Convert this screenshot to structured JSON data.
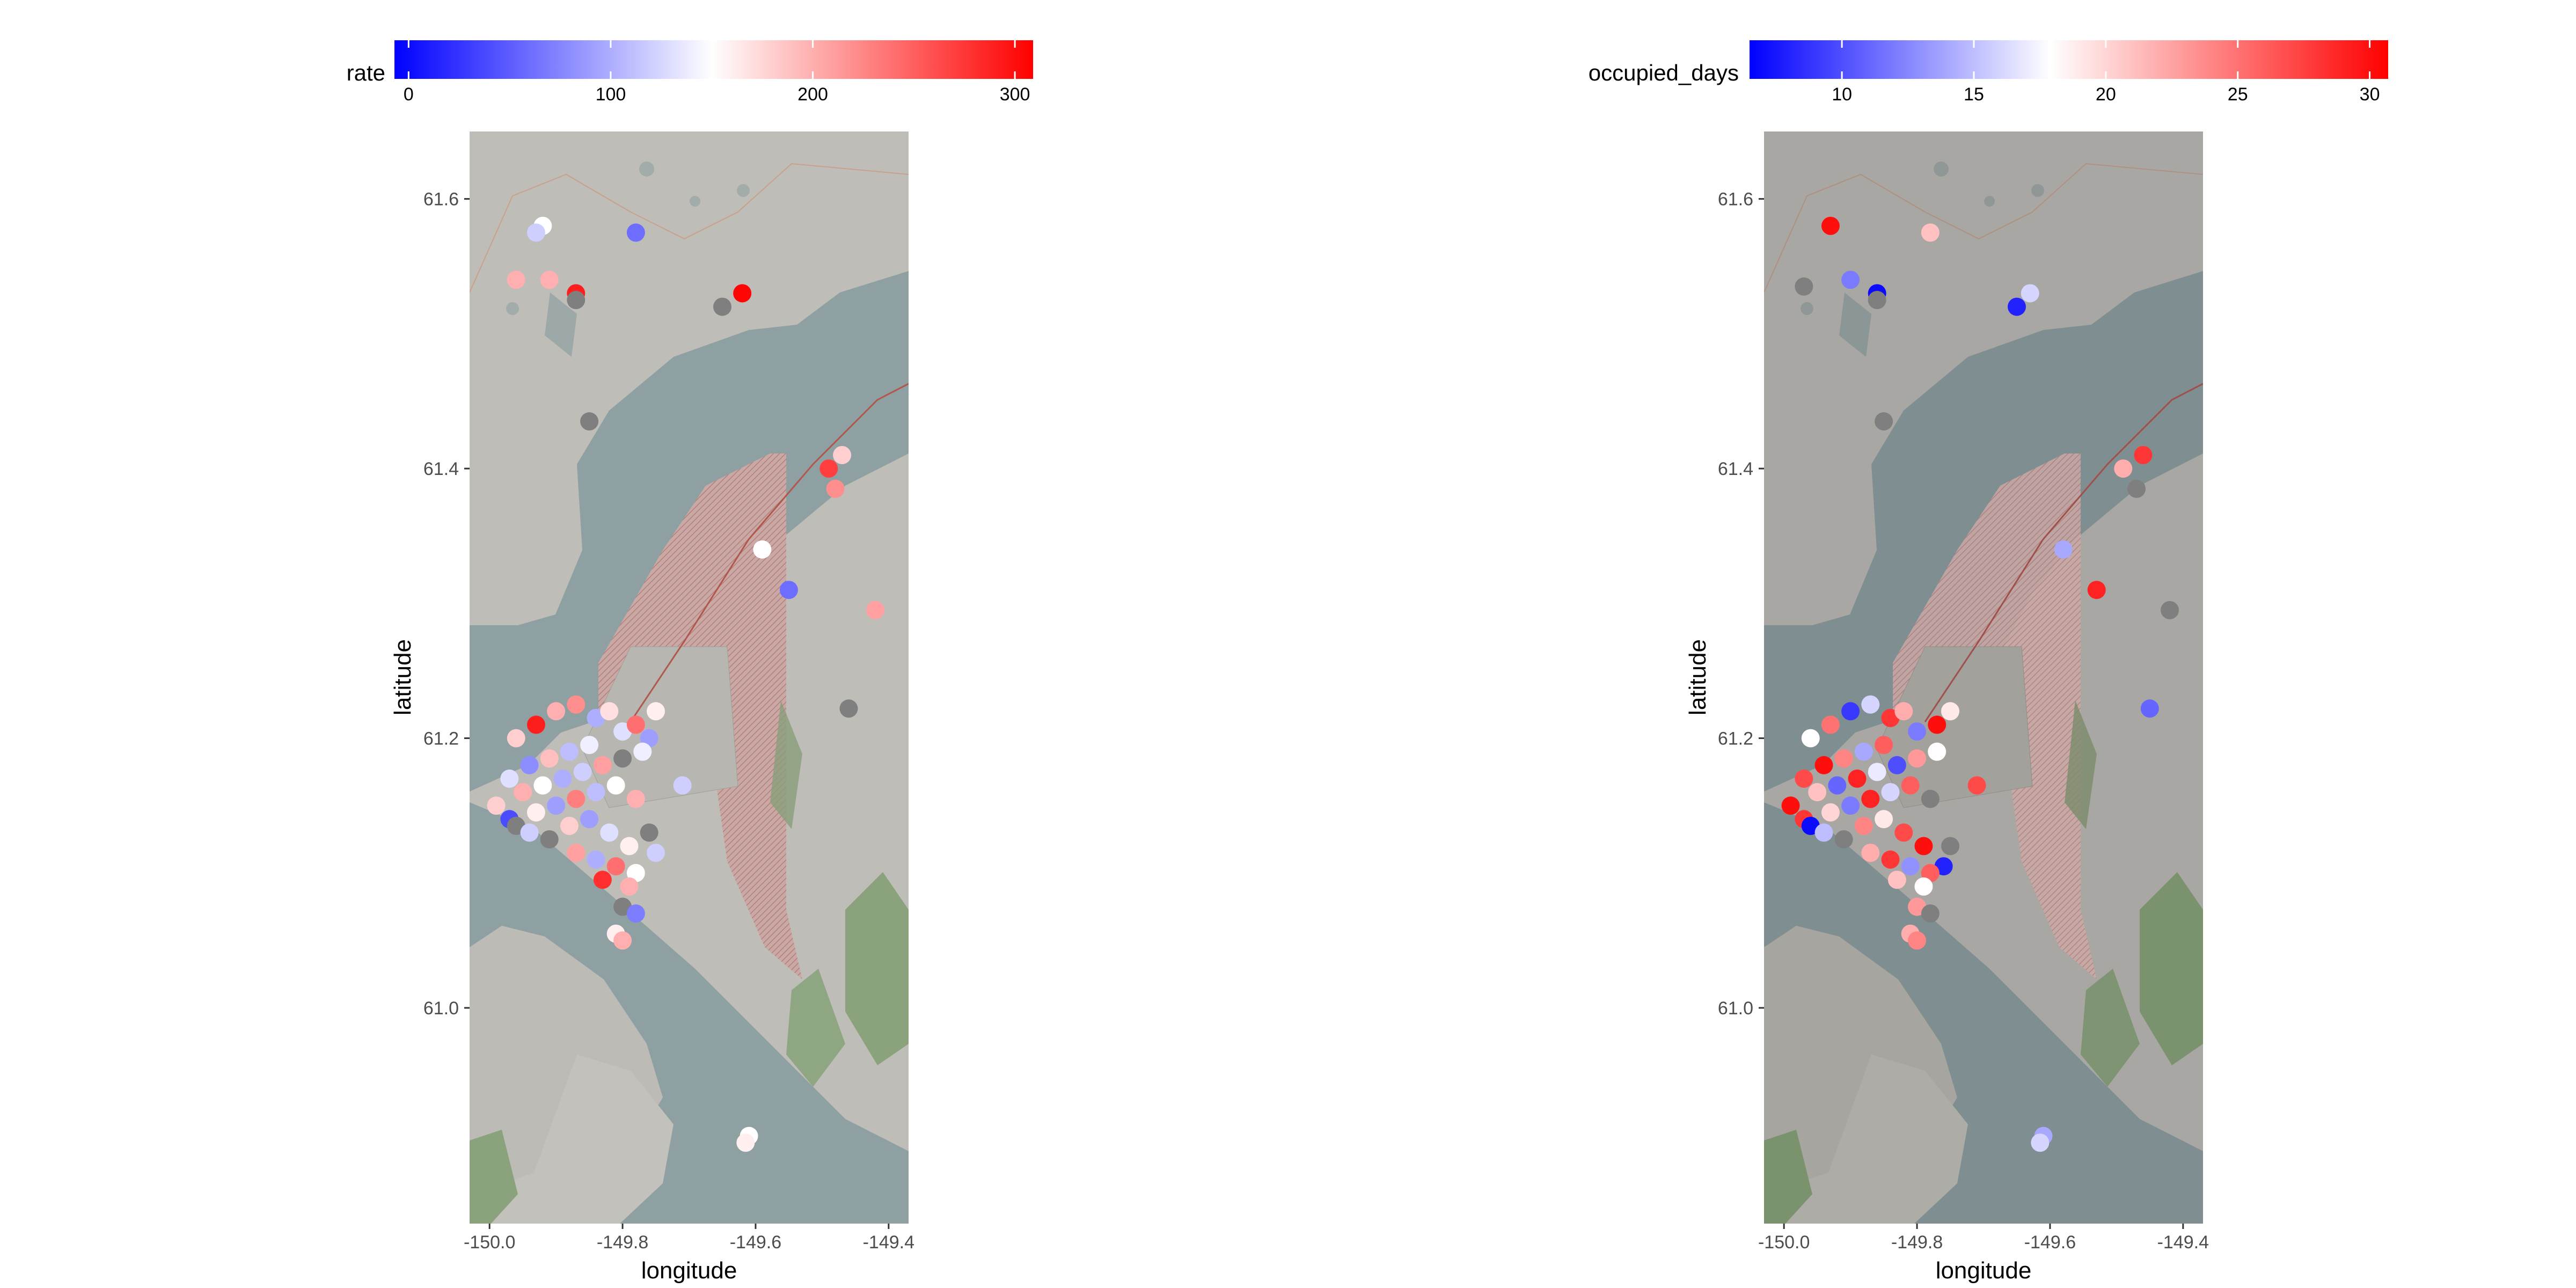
{
  "chart_data": [
    {
      "type": "scatter",
      "xlabel": "longitude",
      "ylabel": "latitude",
      "xlim": [
        -150.03,
        -149.37
      ],
      "ylim": [
        60.84,
        61.65
      ],
      "x_ticks": [
        "-150.0",
        "-149.8",
        "-149.6",
        "-149.4"
      ],
      "y_ticks": [
        "61.0",
        "61.2",
        "61.4",
        "61.6"
      ],
      "x_tick_values": [
        -150.0,
        -149.8,
        -149.6,
        -149.4
      ],
      "y_tick_values": [
        61.0,
        61.2,
        61.4,
        61.6
      ],
      "legend": {
        "title": "rate",
        "ticks": [
          "0",
          "100",
          "200",
          "300"
        ],
        "tick_values": [
          0,
          100,
          200,
          300
        ],
        "min": -7,
        "max": 309,
        "low_color": "#0000ff",
        "mid_color": "#ffffff",
        "high_color": "#ff0000",
        "midpoint": 150,
        "placement": "top"
      },
      "na_color": "#7f7f7f",
      "points": [
        {
          "lon": -149.92,
          "lat": 61.58,
          "value": 150
        },
        {
          "lon": -149.93,
          "lat": 61.575,
          "value": 120
        },
        {
          "lon": -149.78,
          "lat": 61.575,
          "value": 60
        },
        {
          "lon": -149.96,
          "lat": 61.54,
          "value": 200
        },
        {
          "lon": -149.91,
          "lat": 61.54,
          "value": 200
        },
        {
          "lon": -149.87,
          "lat": 61.53,
          "value": 290
        },
        {
          "lon": -149.87,
          "lat": 61.525,
          "value": null
        },
        {
          "lon": -149.65,
          "lat": 61.52,
          "value": null
        },
        {
          "lon": -149.62,
          "lat": 61.53,
          "value": 305
        },
        {
          "lon": -149.85,
          "lat": 61.435,
          "value": null
        },
        {
          "lon": -149.47,
          "lat": 61.41,
          "value": 180
        },
        {
          "lon": -149.49,
          "lat": 61.4,
          "value": 270
        },
        {
          "lon": -149.48,
          "lat": 61.385,
          "value": 220
        },
        {
          "lon": -149.59,
          "lat": 61.34,
          "value": 150
        },
        {
          "lon": -149.55,
          "lat": 61.31,
          "value": 60
        },
        {
          "lon": -149.42,
          "lat": 61.295,
          "value": 210
        },
        {
          "lon": -149.46,
          "lat": 61.222,
          "value": null
        },
        {
          "lon": -149.71,
          "lat": 61.165,
          "value": 120
        },
        {
          "lon": -149.96,
          "lat": 61.2,
          "value": 180
        },
        {
          "lon": -149.93,
          "lat": 61.21,
          "value": 290
        },
        {
          "lon": -149.9,
          "lat": 61.22,
          "value": 200
        },
        {
          "lon": -149.87,
          "lat": 61.225,
          "value": 220
        },
        {
          "lon": -149.84,
          "lat": 61.215,
          "value": 100
        },
        {
          "lon": -149.82,
          "lat": 61.22,
          "value": 170
        },
        {
          "lon": -149.8,
          "lat": 61.205,
          "value": 130
        },
        {
          "lon": -149.78,
          "lat": 61.21,
          "value": 240
        },
        {
          "lon": -149.76,
          "lat": 61.2,
          "value": 90
        },
        {
          "lon": -149.75,
          "lat": 61.22,
          "value": 160
        },
        {
          "lon": -149.85,
          "lat": 61.195,
          "value": 140
        },
        {
          "lon": -149.88,
          "lat": 61.19,
          "value": 110
        },
        {
          "lon": -149.91,
          "lat": 61.185,
          "value": 190
        },
        {
          "lon": -149.94,
          "lat": 61.18,
          "value": 80
        },
        {
          "lon": -149.97,
          "lat": 61.17,
          "value": 130
        },
        {
          "lon": -149.95,
          "lat": 61.16,
          "value": 200
        },
        {
          "lon": -149.92,
          "lat": 61.165,
          "value": 150
        },
        {
          "lon": -149.89,
          "lat": 61.17,
          "value": 100
        },
        {
          "lon": -149.86,
          "lat": 61.175,
          "value": 120
        },
        {
          "lon": -149.83,
          "lat": 61.18,
          "value": 210
        },
        {
          "lon": -149.8,
          "lat": 61.185,
          "value": null
        },
        {
          "lon": -149.77,
          "lat": 61.19,
          "value": 140
        },
        {
          "lon": -149.99,
          "lat": 61.15,
          "value": 180
        },
        {
          "lon": -149.97,
          "lat": 61.14,
          "value": 40
        },
        {
          "lon": -149.96,
          "lat": 61.135,
          "value": null
        },
        {
          "lon": -149.93,
          "lat": 61.145,
          "value": 160
        },
        {
          "lon": -149.9,
          "lat": 61.15,
          "value": 90
        },
        {
          "lon": -149.87,
          "lat": 61.155,
          "value": 230
        },
        {
          "lon": -149.84,
          "lat": 61.16,
          "value": 110
        },
        {
          "lon": -149.81,
          "lat": 61.165,
          "value": 150
        },
        {
          "lon": -149.78,
          "lat": 61.155,
          "value": 200
        },
        {
          "lon": -149.94,
          "lat": 61.13,
          "value": 120
        },
        {
          "lon": -149.91,
          "lat": 61.125,
          "value": null
        },
        {
          "lon": -149.88,
          "lat": 61.135,
          "value": 180
        },
        {
          "lon": -149.85,
          "lat": 61.14,
          "value": 90
        },
        {
          "lon": -149.82,
          "lat": 61.13,
          "value": 130
        },
        {
          "lon": -149.79,
          "lat": 61.12,
          "value": 160
        },
        {
          "lon": -149.76,
          "lat": 61.13,
          "value": null
        },
        {
          "lon": -149.87,
          "lat": 61.115,
          "value": 210
        },
        {
          "lon": -149.84,
          "lat": 61.11,
          "value": 100
        },
        {
          "lon": -149.81,
          "lat": 61.105,
          "value": 240
        },
        {
          "lon": -149.78,
          "lat": 61.1,
          "value": 150
        },
        {
          "lon": -149.75,
          "lat": 61.115,
          "value": 120
        },
        {
          "lon": -149.83,
          "lat": 61.095,
          "value": 280
        },
        {
          "lon": -149.79,
          "lat": 61.09,
          "value": 200
        },
        {
          "lon": -149.8,
          "lat": 61.075,
          "value": null
        },
        {
          "lon": -149.78,
          "lat": 61.07,
          "value": 70
        },
        {
          "lon": -149.81,
          "lat": 61.055,
          "value": 160
        },
        {
          "lon": -149.8,
          "lat": 61.05,
          "value": 200
        },
        {
          "lon": -149.61,
          "lat": 60.905,
          "value": 150
        },
        {
          "lon": -149.615,
          "lat": 60.9,
          "value": 160
        }
      ]
    },
    {
      "type": "scatter",
      "xlabel": "longitude",
      "ylabel": "latitude",
      "xlim": [
        -150.03,
        -149.37
      ],
      "ylim": [
        60.84,
        61.65
      ],
      "x_ticks": [
        "-150.0",
        "-149.8",
        "-149.6",
        "-149.4"
      ],
      "y_ticks": [
        "61.0",
        "61.2",
        "61.4",
        "61.6"
      ],
      "x_tick_values": [
        -150.0,
        -149.8,
        -149.6,
        -149.4
      ],
      "y_tick_values": [
        61.0,
        61.2,
        61.4,
        61.6
      ],
      "legend": {
        "title": "occupied_days",
        "ticks": [
          "10",
          "15",
          "20",
          "25",
          "30"
        ],
        "tick_values": [
          10,
          15,
          20,
          25,
          30
        ],
        "min": 6.5,
        "max": 30.7,
        "low_color": "#0000ff",
        "mid_color": "#ffffff",
        "high_color": "#ff0000",
        "midpoint": 17.9,
        "placement": "top"
      },
      "na_color": "#7f7f7f",
      "points": [
        {
          "lon": -149.93,
          "lat": 61.58,
          "value": 30
        },
        {
          "lon": -149.78,
          "lat": 61.575,
          "value": 21
        },
        {
          "lon": -149.97,
          "lat": 61.535,
          "value": null
        },
        {
          "lon": -149.9,
          "lat": 61.54,
          "value": 12
        },
        {
          "lon": -149.86,
          "lat": 61.53,
          "value": 7
        },
        {
          "lon": -149.86,
          "lat": 61.525,
          "value": null
        },
        {
          "lon": -149.63,
          "lat": 61.53,
          "value": 16
        },
        {
          "lon": -149.65,
          "lat": 61.52,
          "value": 8
        },
        {
          "lon": -149.85,
          "lat": 61.435,
          "value": null
        },
        {
          "lon": -149.46,
          "lat": 61.41,
          "value": 28
        },
        {
          "lon": -149.49,
          "lat": 61.4,
          "value": 22
        },
        {
          "lon": -149.47,
          "lat": 61.385,
          "value": null
        },
        {
          "lon": -149.58,
          "lat": 61.34,
          "value": 14
        },
        {
          "lon": -149.53,
          "lat": 61.31,
          "value": 29
        },
        {
          "lon": -149.42,
          "lat": 61.295,
          "value": null
        },
        {
          "lon": -149.45,
          "lat": 61.222,
          "value": 11
        },
        {
          "lon": -149.71,
          "lat": 61.165,
          "value": 27
        },
        {
          "lon": -149.96,
          "lat": 61.2,
          "value": 18
        },
        {
          "lon": -149.93,
          "lat": 61.21,
          "value": 25
        },
        {
          "lon": -149.9,
          "lat": 61.22,
          "value": 9
        },
        {
          "lon": -149.87,
          "lat": 61.225,
          "value": 16
        },
        {
          "lon": -149.84,
          "lat": 61.215,
          "value": 28
        },
        {
          "lon": -149.82,
          "lat": 61.22,
          "value": 22
        },
        {
          "lon": -149.8,
          "lat": 61.205,
          "value": 12
        },
        {
          "lon": -149.77,
          "lat": 61.21,
          "value": 30
        },
        {
          "lon": -149.75,
          "lat": 61.22,
          "value": 19
        },
        {
          "lon": -149.85,
          "lat": 61.195,
          "value": 26
        },
        {
          "lon": -149.88,
          "lat": 61.19,
          "value": 14
        },
        {
          "lon": -149.91,
          "lat": 61.185,
          "value": 24
        },
        {
          "lon": -149.94,
          "lat": 61.18,
          "value": 30
        },
        {
          "lon": -149.97,
          "lat": 61.17,
          "value": 27
        },
        {
          "lon": -149.95,
          "lat": 61.16,
          "value": 21
        },
        {
          "lon": -149.92,
          "lat": 61.165,
          "value": 11
        },
        {
          "lon": -149.89,
          "lat": 61.17,
          "value": 29
        },
        {
          "lon": -149.86,
          "lat": 61.175,
          "value": 17
        },
        {
          "lon": -149.83,
          "lat": 61.18,
          "value": 10
        },
        {
          "lon": -149.8,
          "lat": 61.185,
          "value": 23
        },
        {
          "lon": -149.77,
          "lat": 61.19,
          "value": 18
        },
        {
          "lon": -149.99,
          "lat": 61.15,
          "value": 30
        },
        {
          "lon": -149.97,
          "lat": 61.14,
          "value": 28
        },
        {
          "lon": -149.96,
          "lat": 61.135,
          "value": 7
        },
        {
          "lon": -149.93,
          "lat": 61.145,
          "value": 20
        },
        {
          "lon": -149.9,
          "lat": 61.15,
          "value": 12
        },
        {
          "lon": -149.87,
          "lat": 61.155,
          "value": 29
        },
        {
          "lon": -149.84,
          "lat": 61.16,
          "value": 16
        },
        {
          "lon": -149.81,
          "lat": 61.165,
          "value": 26
        },
        {
          "lon": -149.78,
          "lat": 61.155,
          "value": null
        },
        {
          "lon": -149.94,
          "lat": 61.13,
          "value": 15
        },
        {
          "lon": -149.91,
          "lat": 61.125,
          "value": null
        },
        {
          "lon": -149.88,
          "lat": 61.135,
          "value": 24
        },
        {
          "lon": -149.85,
          "lat": 61.14,
          "value": 19
        },
        {
          "lon": -149.82,
          "lat": 61.13,
          "value": 27
        },
        {
          "lon": -149.79,
          "lat": 61.12,
          "value": 30
        },
        {
          "lon": -149.76,
          "lat": 61.105,
          "value": 8
        },
        {
          "lon": -149.87,
          "lat": 61.115,
          "value": 22
        },
        {
          "lon": -149.84,
          "lat": 61.11,
          "value": 28
        },
        {
          "lon": -149.81,
          "lat": 61.105,
          "value": 13
        },
        {
          "lon": -149.78,
          "lat": 61.1,
          "value": 26
        },
        {
          "lon": -149.75,
          "lat": 61.12,
          "value": null
        },
        {
          "lon": -149.83,
          "lat": 61.095,
          "value": 21
        },
        {
          "lon": -149.79,
          "lat": 61.09,
          "value": 18
        },
        {
          "lon": -149.8,
          "lat": 61.075,
          "value": 23
        },
        {
          "lon": -149.78,
          "lat": 61.07,
          "value": null
        },
        {
          "lon": -149.81,
          "lat": 61.055,
          "value": 22
        },
        {
          "lon": -149.8,
          "lat": 61.05,
          "value": 24
        },
        {
          "lon": -149.61,
          "lat": 60.905,
          "value": 14
        },
        {
          "lon": -149.615,
          "lat": 60.9,
          "value": 16
        }
      ]
    }
  ]
}
